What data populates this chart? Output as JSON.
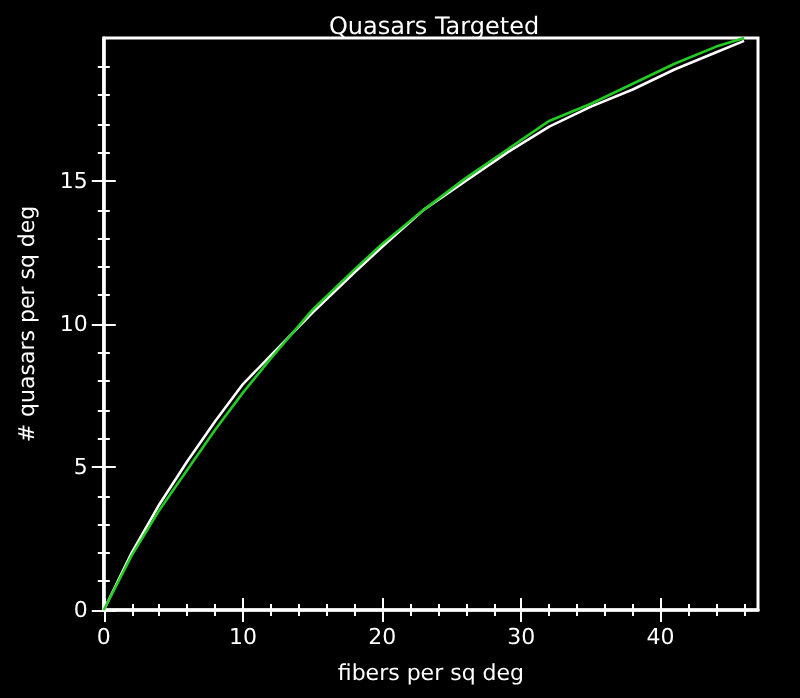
{
  "chart_data": {
    "type": "line",
    "title": "Quasars Targeted",
    "xlabel": "fibers per sq deg",
    "ylabel": "# quasars per sq deg",
    "xlim": [
      0,
      47
    ],
    "ylim": [
      0,
      20
    ],
    "xticks": [
      0,
      10,
      20,
      30,
      40
    ],
    "yticks": [
      0,
      5,
      10,
      15
    ],
    "grid": false,
    "marker": "none",
    "line_style": "solid",
    "series": [
      {
        "color": "#ffffff",
        "x": [
          0,
          2,
          4,
          6,
          8,
          10,
          12,
          15,
          18,
          20,
          23,
          26,
          29,
          32,
          35,
          38,
          41,
          44,
          46
        ],
        "values": [
          0,
          2,
          3.7,
          5.2,
          6.6,
          7.9,
          8.9,
          10.4,
          11.8,
          12.7,
          14,
          15,
          16,
          16.9,
          17.6,
          18.2,
          18.9,
          19.5,
          19.9
        ]
      },
      {
        "color": "#22cc22",
        "x": [
          0,
          2,
          4,
          6,
          8,
          10,
          12,
          15,
          18,
          20,
          23,
          26,
          29,
          32,
          35,
          38,
          41,
          44,
          46
        ],
        "values": [
          0,
          1.9,
          3.5,
          4.9,
          6.3,
          7.6,
          8.8,
          10.5,
          11.9,
          12.8,
          14,
          15.1,
          16.1,
          17.1,
          17.7,
          18.4,
          19.1,
          19.7,
          20
        ]
      }
    ]
  }
}
